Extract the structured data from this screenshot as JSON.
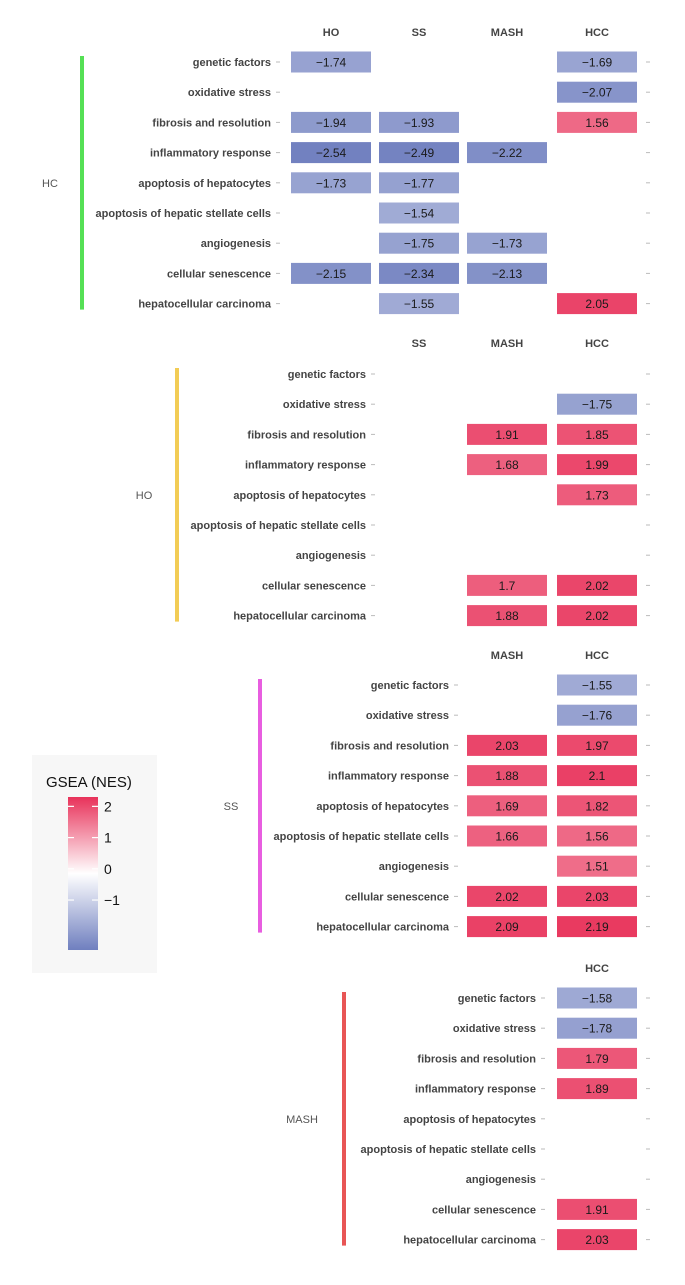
{
  "chart_data": {
    "type": "heatmap",
    "colors": {
      "low": "#6f7fbf",
      "mid": "#ffffff",
      "high": "#e8325a"
    },
    "color_range": [
      -2.6,
      2.3
    ],
    "legend": {
      "title": "GSEA (NES)",
      "ticks": [
        2,
        1,
        0,
        -1
      ],
      "tick_labels": [
        "2",
        "1",
        "0",
        "−1"
      ]
    },
    "rows": [
      "genetic factors",
      "oxidative stress",
      "fibrosis and resolution",
      "inflammatory response",
      "apoptosis of hepatocytes",
      "apoptosis of hepatic stellate cells",
      "angiogenesis",
      "cellular senescence",
      "hepatocellular carcinoma"
    ],
    "panels": [
      {
        "group": "HC",
        "bar_color": "#55e055",
        "columns": [
          "HO",
          "SS",
          "MASH",
          "HCC"
        ],
        "values": [
          [
            -1.74,
            null,
            null,
            -1.69
          ],
          [
            null,
            null,
            null,
            -2.07
          ],
          [
            -1.94,
            -1.93,
            null,
            1.56
          ],
          [
            -2.54,
            -2.49,
            -2.22,
            null
          ],
          [
            -1.73,
            -1.77,
            null,
            null
          ],
          [
            null,
            -1.54,
            null,
            null
          ],
          [
            null,
            -1.75,
            -1.73,
            null
          ],
          [
            -2.15,
            -2.34,
            -2.13,
            null
          ],
          [
            null,
            -1.55,
            null,
            2.05
          ]
        ]
      },
      {
        "group": "HO",
        "bar_color": "#f2cc55",
        "columns": [
          "SS",
          "MASH",
          "HCC"
        ],
        "values": [
          [
            null,
            null,
            null
          ],
          [
            null,
            null,
            -1.75
          ],
          [
            null,
            1.91,
            1.85
          ],
          [
            null,
            1.68,
            1.99
          ],
          [
            null,
            null,
            1.73
          ],
          [
            null,
            null,
            null
          ],
          [
            null,
            null,
            null
          ],
          [
            null,
            1.7,
            2.02
          ],
          [
            null,
            1.88,
            2.02
          ]
        ]
      },
      {
        "group": "SS",
        "bar_color": "#e85ee0",
        "columns": [
          "MASH",
          "HCC"
        ],
        "values": [
          [
            null,
            -1.55
          ],
          [
            null,
            -1.76
          ],
          [
            2.03,
            1.97
          ],
          [
            1.88,
            2.1
          ],
          [
            1.69,
            1.82
          ],
          [
            1.66,
            1.56
          ],
          [
            null,
            1.51
          ],
          [
            2.02,
            2.03
          ],
          [
            2.09,
            2.19
          ]
        ]
      },
      {
        "group": "MASH",
        "bar_color": "#e85555",
        "columns": [
          "HCC"
        ],
        "values": [
          [
            -1.58
          ],
          [
            -1.78
          ],
          [
            1.79
          ],
          [
            1.89
          ],
          [
            null
          ],
          [
            null
          ],
          [
            null
          ],
          [
            1.91
          ],
          [
            2.03
          ]
        ]
      }
    ]
  }
}
